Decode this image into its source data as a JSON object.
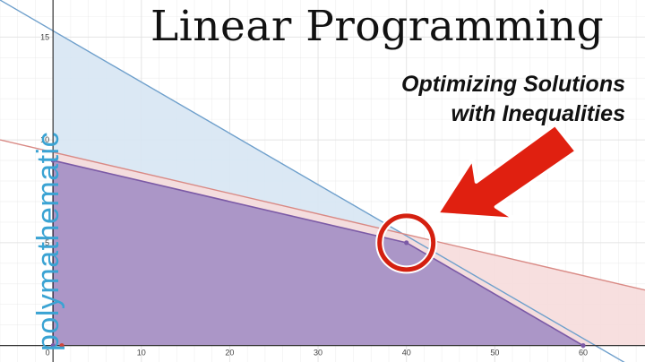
{
  "header": {
    "title": "Linear Programming",
    "subtitle_line1": "Optimizing Solutions",
    "subtitle_line2": "with Inequalities",
    "brand": "polymathematic"
  },
  "colors": {
    "blue_line": "#6fa0cc",
    "blue_fill": "#d7e6f3",
    "red_line": "#d98a85",
    "red_fill": "#f6dcdb",
    "overlap_fill": "#a48fc4",
    "overlap_edge": "#7b5aa6",
    "grid": "#e4e4e4",
    "axis": "#333333",
    "arrow": "#e02010",
    "circle": "#d42010",
    "brand": "#3aa3d3"
  },
  "chart_data": {
    "type": "area",
    "xlim": [
      -6,
      67
    ],
    "ylim": [
      -0.8,
      16.8
    ],
    "grid": true,
    "x_ticks": [
      0,
      10,
      20,
      30,
      40,
      50,
      60
    ],
    "y_ticks": [
      5,
      10,
      15
    ],
    "series": [
      {
        "style": "blue",
        "x": [
          -6,
          67
        ],
        "y": [
          16.8,
          -1.4
        ]
      },
      {
        "style": "red",
        "x": [
          -6,
          67
        ],
        "y": [
          10.0,
          2.7
        ]
      }
    ],
    "feasible_region": {
      "x": [
        0,
        0,
        40,
        60
      ],
      "y": [
        0,
        9,
        5,
        0
      ]
    },
    "vertices": [
      {
        "x": 0,
        "y": 9
      },
      {
        "x": 40,
        "y": 5
      },
      {
        "x": 60,
        "y": 0
      },
      {
        "x": 0,
        "y": 0
      },
      {
        "x": 1,
        "y": 0
      }
    ],
    "highlight": {
      "x": 40,
      "y": 5
    }
  }
}
